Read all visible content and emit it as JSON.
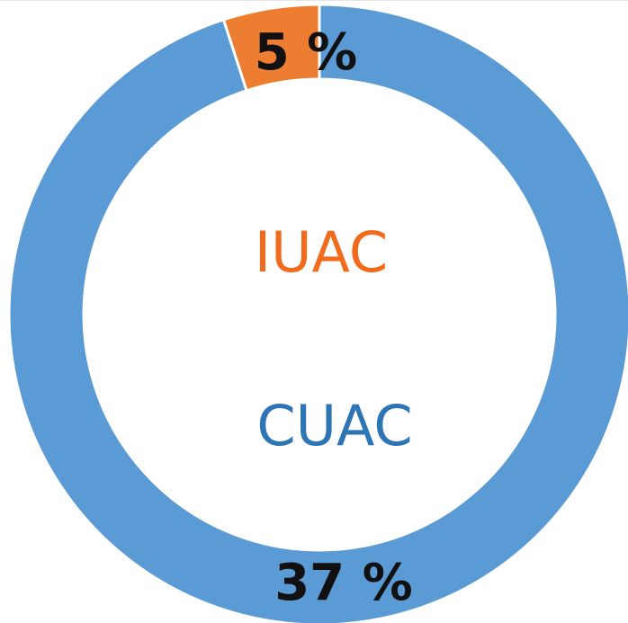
{
  "chart_data": {
    "type": "donut",
    "categories": [
      "IUAC",
      "CUAC"
    ],
    "values": [
      5,
      37
    ],
    "value_labels": [
      "5 %",
      "37 %"
    ],
    "colors": [
      "#ed7d31",
      "#5b9bd5"
    ],
    "label_colors": [
      "#f26b1d",
      "#2e75b6"
    ]
  }
}
